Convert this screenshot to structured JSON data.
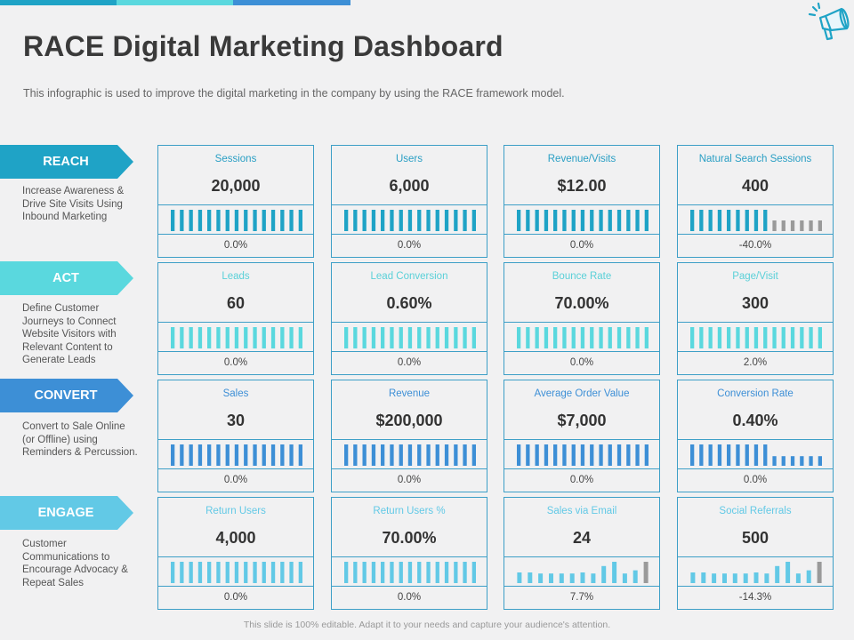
{
  "header": {
    "title": "RACE Digital Marketing Dashboard",
    "subtitle": "This infographic is used to improve  the digital marketing in the company by using the RACE framework  model."
  },
  "icons": {
    "megaphone": "megaphone-icon"
  },
  "colors": {
    "reach": "#1fa3c6",
    "act": "#5ad8de",
    "convert": "#3d8fd6",
    "engage": "#62c9e6",
    "border": "#3d9fc7",
    "gray_bar": "#9a9a9a",
    "topbar": [
      "#1fa3c6",
      "#5ad8de",
      "#3d8fd6"
    ]
  },
  "stages": [
    {
      "label": "REACH",
      "color": "#1fa3c6",
      "text_color": "#2a9fc4",
      "description": "Increase Awareness & Drive Site Visits Using Inbound Marketing",
      "metrics": [
        {
          "name": "Sessions",
          "value": "20,000",
          "change": "0.0%",
          "bars": [
            1,
            1,
            1,
            1,
            1,
            1,
            1,
            1,
            1,
            1,
            1,
            1,
            1,
            1,
            1
          ]
        },
        {
          "name": "Users",
          "value": "6,000",
          "change": "0.0%",
          "bars": [
            1,
            1,
            1,
            1,
            1,
            1,
            1,
            1,
            1,
            1,
            1,
            1,
            1,
            1,
            1
          ]
        },
        {
          "name": "Revenue/Visits",
          "value": "$12.00",
          "change": "0.0%",
          "bars": [
            1,
            1,
            1,
            1,
            1,
            1,
            1,
            1,
            1,
            1,
            1,
            1,
            1,
            1,
            1
          ]
        },
        {
          "name": "Natural Search Sessions",
          "value": "400",
          "change": "-40.0%",
          "bars": [
            1,
            1,
            1,
            1,
            1,
            1,
            1,
            1,
            1,
            0.5,
            0.5,
            0.5,
            0.5,
            0.5,
            0.5
          ],
          "gray_from": 9
        }
      ]
    },
    {
      "label": "ACT",
      "color": "#5ad8de",
      "text_color": "#5ad0d8",
      "description": "Define Customer Journeys to Connect Website Visitors with Relevant Content to Generate Leads",
      "metrics": [
        {
          "name": "Leads",
          "value": "60",
          "change": "0.0%",
          "bars": [
            1,
            1,
            1,
            1,
            1,
            1,
            1,
            1,
            1,
            1,
            1,
            1,
            1,
            1,
            1
          ]
        },
        {
          "name": "Lead Conversion",
          "value": "0.60%",
          "change": "0.0%",
          "bars": [
            1,
            1,
            1,
            1,
            1,
            1,
            1,
            1,
            1,
            1,
            1,
            1,
            1,
            1,
            1
          ]
        },
        {
          "name": "Bounce Rate",
          "value": "70.00%",
          "change": "0.0%",
          "bars": [
            1,
            1,
            1,
            1,
            1,
            1,
            1,
            1,
            1,
            1,
            1,
            1,
            1,
            1,
            1
          ]
        },
        {
          "name": "Page/Visit",
          "value": "300",
          "change": "2.0%",
          "bars": [
            1,
            1,
            1,
            1,
            1,
            1,
            1,
            1,
            1,
            1,
            1,
            1,
            1,
            1,
            1
          ]
        }
      ]
    },
    {
      "label": "CONVERT",
      "color": "#3d8fd6",
      "text_color": "#3d8fd6",
      "description": "Convert to Sale Online (or Offline) using Reminders & Percussion.",
      "metrics": [
        {
          "name": "Sales",
          "value": "30",
          "change": "0.0%",
          "bars": [
            1,
            1,
            1,
            1,
            1,
            1,
            1,
            1,
            1,
            1,
            1,
            1,
            1,
            1,
            1
          ]
        },
        {
          "name": "Revenue",
          "value": "$200,000",
          "change": "0.0%",
          "bars": [
            1,
            1,
            1,
            1,
            1,
            1,
            1,
            1,
            1,
            1,
            1,
            1,
            1,
            1,
            1
          ]
        },
        {
          "name": "Average Order Value",
          "value": "$7,000",
          "change": "0.0%",
          "bars": [
            1,
            1,
            1,
            1,
            1,
            1,
            1,
            1,
            1,
            1,
            1,
            1,
            1,
            1,
            1
          ]
        },
        {
          "name": "Conversion Rate",
          "value": "0.40%",
          "change": "0.0%",
          "bars": [
            1,
            1,
            1,
            1,
            1,
            1,
            1,
            1,
            1,
            0.45,
            0.45,
            0.45,
            0.45,
            0.45,
            0.45
          ]
        }
      ]
    },
    {
      "label": "ENGAGE",
      "color": "#62c9e6",
      "text_color": "#62c9e6",
      "description": "Customer Communications to Encourage Advocacy & Repeat Sales",
      "metrics": [
        {
          "name": "Return Users",
          "value": "4,000",
          "change": "0.0%",
          "bars": [
            1,
            1,
            1,
            1,
            1,
            1,
            1,
            1,
            1,
            1,
            1,
            1,
            1,
            1,
            1
          ]
        },
        {
          "name": "Return Users %",
          "value": "70.00%",
          "change": "0.0%",
          "bars": [
            1,
            1,
            1,
            1,
            1,
            1,
            1,
            1,
            1,
            1,
            1,
            1,
            1,
            1,
            1
          ]
        },
        {
          "name": "Sales via Email",
          "value": "24",
          "change": "7.7%",
          "bars": [
            0.5,
            0.5,
            0.45,
            0.45,
            0.45,
            0.45,
            0.5,
            0.45,
            0.8,
            1,
            0.45,
            0.6,
            1
          ],
          "gray_from": 12
        },
        {
          "name": "Social Referrals",
          "value": "500",
          "change": "-14.3%",
          "bars": [
            0.5,
            0.5,
            0.45,
            0.45,
            0.45,
            0.45,
            0.5,
            0.45,
            0.8,
            1,
            0.45,
            0.6,
            1
          ],
          "gray_from": 12
        }
      ]
    }
  ],
  "footer": "This slide is 100% editable. Adapt it to your needs and capture your audience's attention."
}
